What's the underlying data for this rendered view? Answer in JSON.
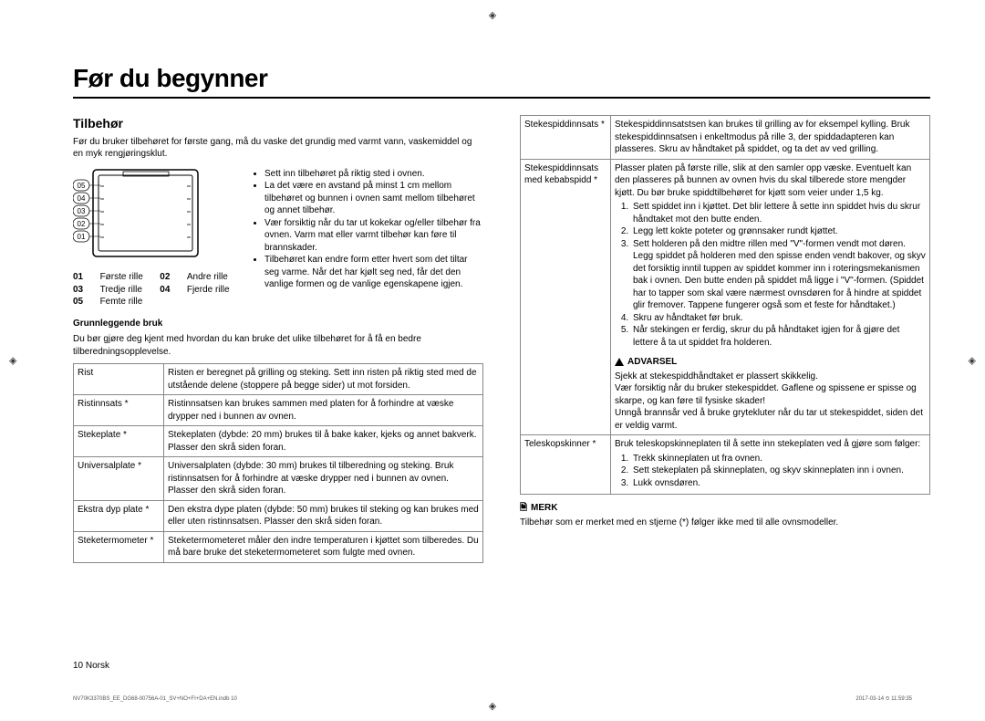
{
  "heading": "Før du begynner",
  "section": "Tilbehør",
  "intro": "Før du bruker tilbehøret for første gang, må du vaske det grundig med varmt vann, vaskemiddel og en myk rengjøringsklut.",
  "oven_levels": [
    "05",
    "04",
    "03",
    "02",
    "01"
  ],
  "legend": [
    [
      "01",
      "Første rille"
    ],
    [
      "02",
      "Andre rille"
    ],
    [
      "03",
      "Tredje rille"
    ],
    [
      "04",
      "Fjerde rille"
    ],
    [
      "05",
      "Femte rille"
    ]
  ],
  "bullets": [
    "Sett inn tilbehøret på riktig sted i ovnen.",
    "La det være en avstand på minst 1 cm mellom tilbehøret og bunnen i ovnen samt mellom tilbehøret og annet tilbehør.",
    "Vær forsiktig når du tar ut kokekar og/eller tilbehør fra ovnen. Varm mat eller varmt tilbehør kan føre til brannskader.",
    "Tilbehøret kan endre form etter hvert som det tiltar seg varme. Når det har kjølt seg ned, får det den vanlige formen og de vanlige egenskapene igjen."
  ],
  "sub1_title": "Grunnleggende bruk",
  "sub1_text": "Du bør gjøre deg kjent med hvordan du kan bruke det ulike tilbehøret for å få en bedre tilberedningsopplevelse.",
  "table1": [
    [
      "Rist",
      "Risten er beregnet på grilling og steking. Sett inn risten på riktig sted med de utstående delene (stoppere på begge sider) ut mot forsiden."
    ],
    [
      "Ristinnsats *",
      "Ristinnsatsen kan brukes sammen med platen for å forhindre at væske drypper ned i bunnen av ovnen."
    ],
    [
      "Stekeplate *",
      "Stekeplaten (dybde: 20 mm) brukes til å bake kaker, kjeks og annet bakverk. Plasser den skrå siden foran."
    ],
    [
      "Universalplate *",
      "Universalplaten (dybde: 30 mm) brukes til tilberedning og steking. Bruk ristinnsatsen for å forhindre at væske drypper ned i bunnen av ovnen. Plasser den skrå siden foran."
    ],
    [
      "Ekstra dyp plate *",
      "Den ekstra dype platen (dybde: 50 mm) brukes til steking og kan brukes med eller uten ristinnsatsen. Plasser den skrå siden foran."
    ],
    [
      "Steketermometer *",
      "Steketermometeret måler den indre temperaturen i kjøttet som tilberedes. Du må bare bruke det steketermometeret som fulgte med ovnen."
    ]
  ],
  "table2_row1": [
    "Stekespiddinnsats *",
    "Stekespiddinnsatstsen kan brukes til grilling av for eksempel kylling. Bruk stekespiddinnsatsen i enkeltmodus på rille 3, der spiddadapteren kan plasseres. Skru av håndtaket på spiddet, og ta det av ved grilling."
  ],
  "table2_row2_label": "Stekespiddinnsats med kebabspidd *",
  "table2_row2_intro": "Plasser platen på første rille, slik at den samler opp væske. Eventuelt kan den plasseres på bunnen av ovnen hvis du skal tilberede store mengder kjøtt. Du bør bruke spiddtilbehøret for kjøtt som veier under 1,5 kg.",
  "table2_row2_list": [
    "Sett spiddet inn i kjøttet. Det blir lettere å sette inn spiddet hvis du skrur håndtaket mot den butte enden.",
    "Legg lett kokte poteter og grønnsaker rundt kjøttet.",
    "Sett holderen på den midtre rillen med \"V\"-formen vendt mot døren. Legg spiddet på holderen med den spisse enden vendt bakover, og skyv det forsiktig inntil tuppen av spiddet kommer inn i roteringsmekanismen bak i ovnen. Den butte enden på spiddet må ligge i \"V\"-formen. (Spiddet har to tapper som skal være nærmest ovnsdøren for å hindre at spiddet glir fremover. Tappene fungerer også som et feste for håndtaket.)",
    "Skru av håndtaket før bruk.",
    "Når stekingen er ferdig, skrur du på håndtaket igjen for å gjøre det lettere å ta ut spiddet fra holderen."
  ],
  "warning_title": "ADVARSEL",
  "warning_text": "Sjekk at stekespiddhåndtaket er plassert skikkelig.\nVær forsiktig når du bruker stekespiddet. Gaflene og spissene er spisse og skarpe, og kan føre til fysiske skader!\nUnngå brannsår ved å bruke grytekluter når du tar ut stekespiddet, siden det er veldig varmt.",
  "table2_row3_label": "Teleskopskinner *",
  "table2_row3_intro": "Bruk teleskopskinneplaten til å sette inn stekeplaten ved å gjøre som følger:",
  "table2_row3_list": [
    "Trekk skinneplaten ut fra ovnen.",
    "Sett stekeplaten på skinneplaten, og skyv skinneplaten inn i ovnen.",
    "Lukk ovnsdøren."
  ],
  "note_title": "MERK",
  "note_text": "Tilbehør som er merket med en stjerne (*) følger ikke med til alle ovnsmodeller.",
  "page_footer_left": "NV70K3370BS_EE_DG68-00756A-01_SV+NO+FI+DA+EN.indb   10",
  "page_footer_right": "2017-03-14 ⏲ 11:59:35",
  "page_num": "10  Norsk",
  "colors": {
    "rule": "#000000",
    "border": "#888888",
    "text": "#000000"
  }
}
